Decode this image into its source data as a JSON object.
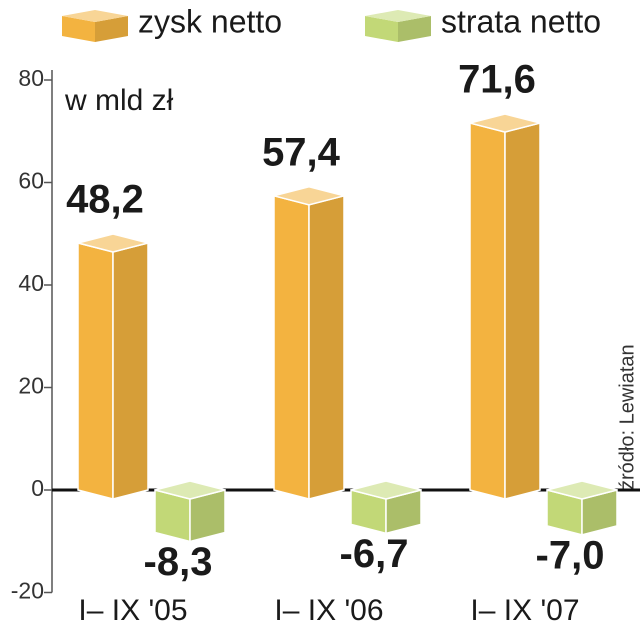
{
  "chart_data": {
    "type": "bar",
    "unit_label": "w mld zł",
    "source": "źródło: Lewiatan",
    "categories": [
      "I– IX '05",
      "I– IX '06",
      "I– IX '07"
    ],
    "series": [
      {
        "name": "zysk netto",
        "color": "#f3b340",
        "values": [
          48.2,
          57.4,
          71.6
        ],
        "value_labels": [
          "48,2",
          "57,4",
          "71,6"
        ]
      },
      {
        "name": "strata netto",
        "color": "#c2d877",
        "values": [
          -8.3,
          -6.7,
          -7.0
        ],
        "value_labels": [
          "-8,3",
          "-6,7",
          "-7,0"
        ]
      }
    ],
    "ylim": [
      -20,
      80
    ],
    "yticks": [
      -20,
      0,
      20,
      40,
      60,
      80
    ]
  }
}
